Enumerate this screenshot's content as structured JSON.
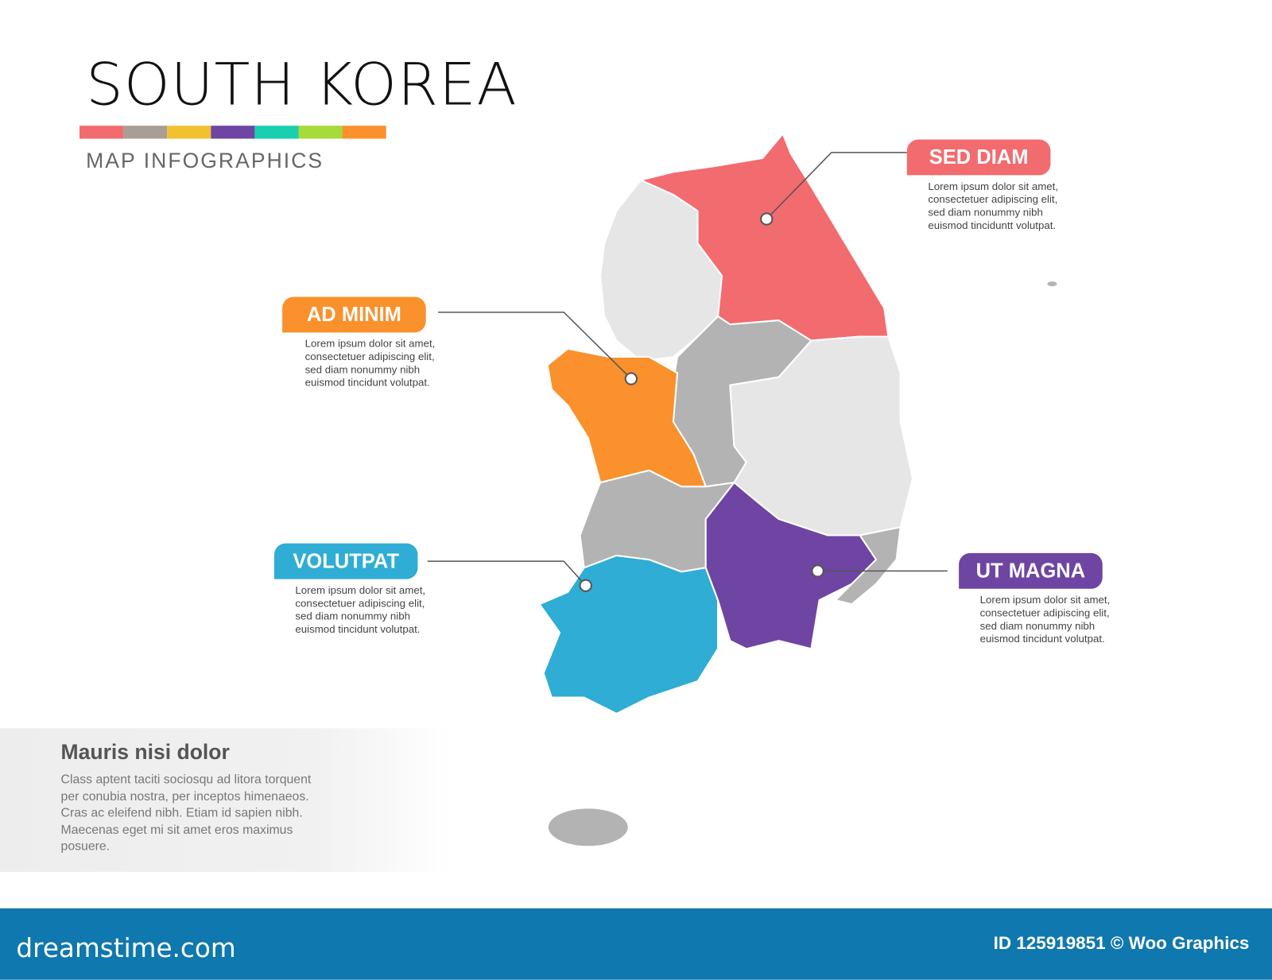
{
  "header": {
    "title": "SOUTH KOREA",
    "subtitle": "MAP INFOGRAPHICS",
    "color_bar": [
      "#f26b6f",
      "#a99e95",
      "#f2c12f",
      "#6e45a3",
      "#19cfb0",
      "#a5db3a",
      "#fa912c"
    ]
  },
  "callouts": [
    {
      "label": "SED DIAM",
      "color": "#f26b6f",
      "lines": [
        "Lorem ipsum dolor sit amet,",
        "consectetuer adipiscing elit,",
        "sed diam nonummy nibh",
        "euismod tinciduntt volutpat."
      ]
    },
    {
      "label": "AD MINIM",
      "color": "#fa912c",
      "lines": [
        "Lorem ipsum dolor sit amet,",
        "consectetuer adipiscing elit,",
        "sed diam nonummy nibh",
        "euismod tincidunt volutpat."
      ]
    },
    {
      "label": "VOLUTPAT",
      "color": "#2fadd4",
      "lines": [
        "Lorem ipsum dolor sit amet,",
        "consectetuer adipiscing elit,",
        "sed diam nonummy nibh",
        "euismod tincidunt volutpat."
      ]
    },
    {
      "label": "UT MAGNA",
      "color": "#6e45a3",
      "lines": [
        "Lorem ipsum dolor sit amet,",
        "consectetuer adipiscing elit,",
        "sed diam nonummy nibh",
        "euismod tincidunt volutpat."
      ]
    }
  ],
  "map_colors": {
    "light": "#e6e6e6",
    "gray": "#b3b3b3",
    "red": "#f26b6f",
    "orange": "#fa912c",
    "blue": "#2fadd4",
    "purple": "#6e45a3"
  },
  "info_box": {
    "heading": "Mauris nisi dolor",
    "lines": [
      "Class aptent taciti sociosqu ad litora torquent",
      "per conubia nostra, per inceptos himenaeos.",
      "Cras ac eleifend nibh. Etiam id sapien nibh.",
      "Maecenas eget mi sit amet eros maximus",
      "posuere."
    ]
  },
  "footer": {
    "logo": "dreamstime.com",
    "credit": "ID 125919851 © Woo Graphics",
    "color": "#0f78ae"
  }
}
